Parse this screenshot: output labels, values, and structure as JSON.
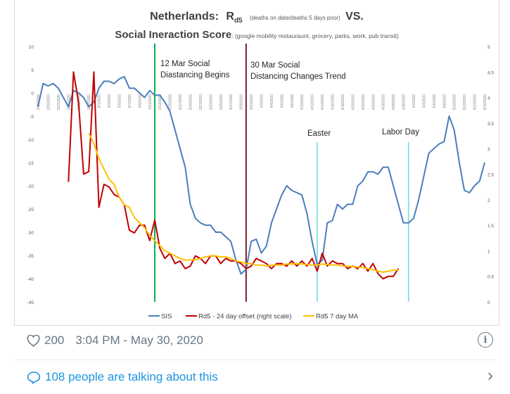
{
  "tweet": {
    "likes": "200",
    "timestamp": "3:04 PM - May 30, 2020",
    "talking": "108 people are talking about this",
    "accent_color": "#1b95e0",
    "meta_color": "#657786",
    "icons": [
      "heart-icon",
      "info-icon",
      "comment-bubble-icon",
      "chevron-right-icon"
    ]
  },
  "chart": {
    "title_line1_main": "Netherlands:",
    "title_r": "R",
    "title_sub": "d5",
    "title_note": "(deaths on date/deaths 5 days prior)",
    "title_vs": "VS.",
    "title_line2_main": "Social Ineraction Score",
    "title_line2_note": ": (google mobility restauraunt, grocery, parks, work, pub transit)",
    "annotations": {
      "mar12_line1": "12 Mar Social",
      "mar12_line2": "Diastancing Begins",
      "mar30_line1": "30 Mar Social",
      "mar30_line2": "Distancing Changes Trend",
      "easter": "Easter",
      "labor_day": "Labor Day"
    },
    "legend": {
      "sis": "SIS",
      "rd5": "Rd5 - 24 day offset (right scale)",
      "ma": "Rd5 7 day MA"
    }
  },
  "chart_data": {
    "type": "line",
    "x_dates": [
      "2/18/2020",
      "2/19/2020",
      "2/20/2020",
      "2/21/2020",
      "2/22/2020",
      "2/23/2020",
      "2/24/2020",
      "2/25/2020",
      "2/26/2020",
      "2/27/2020",
      "2/28/2020",
      "2/29/2020",
      "3/1/2020",
      "3/2/2020",
      "3/3/2020",
      "3/4/2020",
      "3/5/2020",
      "3/6/2020",
      "3/7/2020",
      "3/8/2020",
      "3/9/2020",
      "3/10/2020",
      "3/11/2020",
      "3/12/2020",
      "3/13/2020",
      "3/14/2020",
      "3/15/2020",
      "3/16/2020",
      "3/17/2020",
      "3/18/2020",
      "3/19/2020",
      "3/20/2020",
      "3/21/2020",
      "3/22/2020",
      "3/23/2020",
      "3/24/2020",
      "3/25/2020",
      "3/26/2020",
      "3/27/2020",
      "3/28/2020",
      "3/29/2020",
      "3/30/2020",
      "3/31/2020",
      "4/1/2020",
      "4/2/2020",
      "4/3/2020",
      "4/4/2020",
      "4/5/2020",
      "4/6/2020",
      "4/7/2020",
      "4/8/2020",
      "4/9/2020",
      "4/10/2020",
      "4/11/2020",
      "4/12/2020",
      "4/13/2020",
      "4/14/2020",
      "4/15/2020",
      "4/16/2020",
      "4/17/2020",
      "4/18/2020",
      "4/19/2020",
      "4/20/2020",
      "4/21/2020",
      "4/22/2020",
      "4/23/2020",
      "4/24/2020",
      "4/25/2020",
      "4/26/2020",
      "4/27/2020",
      "4/28/2020",
      "4/29/2020",
      "4/30/2020",
      "5/1/2020",
      "5/2/2020",
      "5/3/2020",
      "5/4/2020",
      "5/5/2020",
      "5/6/2020",
      "5/7/2020",
      "5/8/2020",
      "5/9/2020",
      "5/10/2020",
      "5/11/2020",
      "5/12/2020",
      "5/13/2020",
      "5/14/2020",
      "5/15/2020",
      "5/16/2020"
    ],
    "tick_labels": [
      "2/18/2020",
      "2/20/2020",
      "2/22/2020",
      "2/24/2020",
      "2/26/2020",
      "2/28/2020",
      "3/1/2020",
      "3/3/2020",
      "3/5/2020",
      "3/7/2020",
      "3/9/2020",
      "3/11/2020",
      "3/13/2020",
      "3/15/2020",
      "3/17/2020",
      "3/19/2020",
      "3/21/2020",
      "3/23/2020",
      "3/25/2020",
      "3/27/2020",
      "3/29/2020",
      "3/31/2020",
      "4/2/2020",
      "4/4/2020",
      "4/6/2020",
      "4/8/2020",
      "4/10/2020",
      "4/12/2020",
      "4/14/2020",
      "4/16/2020",
      "4/18/2020",
      "4/20/2020",
      "4/22/2020",
      "4/24/2020",
      "4/26/2020",
      "4/28/2020",
      "4/30/2020",
      "5/2/2020",
      "5/4/2020",
      "5/6/2020",
      "5/8/2020",
      "5/10/2020",
      "5/12/2020",
      "5/14/2020",
      "5/16/2020"
    ],
    "y_left_range": [
      -45,
      10
    ],
    "y_left_ticks": [
      "10",
      "5",
      "0",
      "-5",
      "-10",
      "-15",
      "-20",
      "-25",
      "-30",
      "-35",
      "-40",
      "-45"
    ],
    "y_right_range": [
      0,
      5
    ],
    "y_right_ticks": [
      "5",
      "4.5",
      "4",
      "3.5",
      "3",
      "2.5",
      "2",
      "1.5",
      "1",
      "0.5",
      "0"
    ],
    "series": [
      {
        "name": "SIS",
        "color": "#4a7ebb",
        "axis": "left",
        "values": [
          -3,
          2,
          1.5,
          2,
          1,
          -1,
          -3,
          0.5,
          0,
          -1,
          -3,
          -2,
          1,
          2.5,
          2.5,
          2,
          3,
          3.5,
          1,
          1,
          0,
          -1,
          0.5,
          -0.5,
          -0.5,
          -2,
          -4,
          -8,
          -12,
          -16,
          -24,
          -27,
          -28,
          -28.5,
          -28.5,
          -30,
          -30,
          -31,
          -32,
          -36,
          -39,
          -38,
          -32,
          -31.5,
          -34.5,
          -33,
          -28,
          -25,
          -22,
          -20,
          -21,
          -21.5,
          -22,
          -26,
          -32,
          -37,
          -36,
          -28,
          -27.5,
          -24,
          -25,
          -24,
          -24,
          -20,
          -19,
          -17,
          -17,
          -17.5,
          -16,
          -16,
          -20,
          -24,
          -28,
          -28,
          -27,
          -23,
          -18,
          -13,
          -12,
          -11,
          -10.5,
          -5,
          -8,
          -15,
          -21,
          -21.5,
          -20,
          -19,
          -15
        ]
      },
      {
        "name": "Rd5 - 24 day offset (right scale)",
        "color": "#c00000",
        "axis": "right",
        "values": [
          null,
          null,
          null,
          null,
          null,
          null,
          2.35,
          4.5,
          3.9,
          2.5,
          2.55,
          4.5,
          1.85,
          2.3,
          2.25,
          2.1,
          2.05,
          1.9,
          1.4,
          1.35,
          1.5,
          1.5,
          1.2,
          1.6,
          1.05,
          0.85,
          0.95,
          0.75,
          0.8,
          0.65,
          0.7,
          0.9,
          0.85,
          0.75,
          0.9,
          0.9,
          0.75,
          0.85,
          0.8,
          0.8,
          0.75,
          0.65,
          0.7,
          0.85,
          0.8,
          0.75,
          0.65,
          0.75,
          0.75,
          0.7,
          0.8,
          0.7,
          0.8,
          0.7,
          0.85,
          0.6,
          0.95,
          0.7,
          0.8,
          0.75,
          0.75,
          0.65,
          0.7,
          0.65,
          0.75,
          0.6,
          0.75,
          0.55,
          0.45,
          0.5,
          0.5,
          0.65,
          null,
          null,
          null,
          null,
          null,
          null,
          null,
          null,
          null,
          null,
          null,
          null,
          null,
          null,
          null,
          null,
          null
        ]
      },
      {
        "name": "Rd5 7 day MA",
        "color": "#ffc000",
        "axis": "right",
        "values": [
          null,
          null,
          null,
          null,
          null,
          null,
          null,
          null,
          null,
          null,
          3.3,
          3.1,
          2.8,
          2.6,
          2.4,
          2.3,
          2.05,
          1.9,
          1.85,
          1.65,
          1.55,
          1.45,
          1.3,
          1.2,
          1.1,
          1.0,
          0.95,
          0.9,
          0.85,
          0.82,
          0.82,
          0.82,
          0.85,
          0.88,
          0.9,
          0.9,
          0.88,
          0.88,
          0.85,
          0.8,
          0.78,
          0.75,
          0.75,
          0.72,
          0.72,
          0.7,
          0.72,
          0.72,
          0.72,
          0.74,
          0.74,
          0.75,
          0.74,
          0.73,
          0.72,
          0.72,
          0.74,
          0.73,
          0.72,
          0.72,
          0.7,
          0.7,
          0.69,
          0.68,
          0.67,
          0.65,
          0.63,
          0.6,
          0.58,
          0.6,
          0.62,
          0.62,
          null,
          null,
          null,
          null,
          null,
          null,
          null,
          null,
          null,
          null,
          null,
          null,
          null,
          null,
          null,
          null,
          null
        ]
      }
    ],
    "vertical_markers": [
      {
        "date": "3/12/2020",
        "color": "#00b050"
      },
      {
        "date": "3/30/2020",
        "color": "#7b1c2e"
      },
      {
        "date": "4/13/2020",
        "color": "#7fdfe6"
      },
      {
        "date": "5/1/2020",
        "color": "#7fdfe6"
      }
    ],
    "grid": false,
    "legend_position": "bottom"
  }
}
